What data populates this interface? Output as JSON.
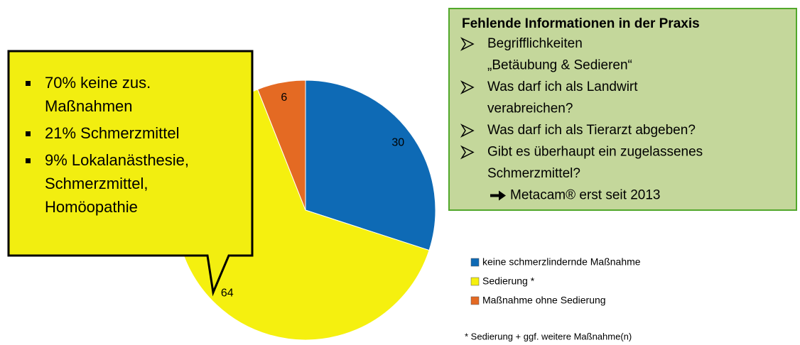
{
  "chart_data": {
    "type": "pie",
    "categories": [
      "keine schmerzlindernde Maßnahme",
      "Sedierung *",
      "Maßnahme ohne Sedierung"
    ],
    "values": [
      30,
      64,
      6
    ],
    "colors": [
      "#0e6ab5",
      "#f5f00f",
      "#e46a23"
    ],
    "legend": "right",
    "footnote": "* Sedierung + ggf. weitere Maßnahme(n)"
  },
  "callout": {
    "items": [
      [
        "70% keine zus.",
        "Maßnahmen"
      ],
      [
        "21% Schmerzmittel"
      ],
      [
        "9% Lokalanästhesie,",
        "Schmerzmittel,",
        "Homöopathie"
      ]
    ]
  },
  "info_box": {
    "title": "Fehlende Informationen in der Praxis",
    "items": [
      [
        "Begrifflichkeiten",
        "„Betäubung & Sedieren“"
      ],
      [
        "Was darf ich als Landwirt",
        "verabreichen?"
      ],
      [
        "Was darf ich als Tierarzt abgeben?"
      ],
      [
        "Gibt es überhaupt ein zugelassenes",
        "Schmerzmittel?"
      ]
    ],
    "note": "Metacam® erst seit 2013"
  }
}
